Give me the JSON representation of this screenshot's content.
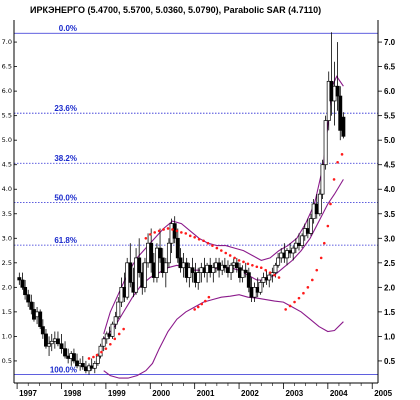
{
  "chart_data": {
    "type": "candlestick",
    "title": "ИРКЭНЕРГО (5.4700, 5.5700, 5.0360, 5.0790), Parabolic SAR (4.7110)",
    "y_ticks": [
      "0.5",
      "1.0",
      "1.5",
      "2.0",
      "2.5",
      "3.0",
      "3.5",
      "4.0",
      "4.5",
      "5.0",
      "5.5",
      "6.0",
      "6.5",
      "7.0"
    ],
    "y_tick_values": [
      0.5,
      1.0,
      1.5,
      2.0,
      2.5,
      3.0,
      3.5,
      4.0,
      4.5,
      5.0,
      5.5,
      6.0,
      6.5,
      7.0
    ],
    "left_ticks": [
      "7.0",
      "6.5",
      "6.0",
      "5.5",
      "5.0",
      "4.5",
      "4.0",
      "3.5",
      "3.0",
      "2.5",
      "2.0",
      "1.5",
      "1.0",
      "0.5"
    ],
    "left_tick_values": [
      7.0,
      6.5,
      6.0,
      5.5,
      5.0,
      4.5,
      4.0,
      3.5,
      3.0,
      2.5,
      2.0,
      1.5,
      1.0,
      0.5
    ],
    "ylim": [
      0.05,
      7.45
    ],
    "x_labels": [
      "1997",
      "1998",
      "1999",
      "2000",
      "2001",
      "2002",
      "2003",
      "2004",
      "2005"
    ],
    "x_label_values": [
      1997,
      1998,
      1999,
      2000,
      2001,
      2002,
      2003,
      2004,
      2005
    ],
    "xlim": [
      1996.93,
      2005.13
    ],
    "fib_levels": [
      {
        "label": "0.0%",
        "value": 7.18
      },
      {
        "label": "23.6%",
        "value": 5.55
      },
      {
        "label": "38.2%",
        "value": 4.53
      },
      {
        "label": "50.0%",
        "value": 3.73
      },
      {
        "label": "61.8%",
        "value": 2.86
      },
      {
        "label": "100.0%",
        "value": 0.22
      }
    ],
    "candles": [
      [
        1997.05,
        2.2,
        2.3,
        2.05,
        2.15
      ],
      [
        1997.12,
        2.15,
        2.3,
        1.95,
        2.0
      ],
      [
        1997.18,
        2.0,
        2.15,
        1.75,
        1.85
      ],
      [
        1997.25,
        1.85,
        1.95,
        1.6,
        1.7
      ],
      [
        1997.32,
        1.7,
        1.85,
        1.45,
        1.55
      ],
      [
        1997.38,
        1.55,
        1.7,
        1.3,
        1.35
      ],
      [
        1997.45,
        1.4,
        1.6,
        1.25,
        1.5
      ],
      [
        1997.52,
        1.5,
        1.55,
        1.15,
        1.2
      ],
      [
        1997.58,
        1.2,
        1.35,
        0.95,
        1.05
      ],
      [
        1997.65,
        1.05,
        1.15,
        0.75,
        0.8
      ],
      [
        1997.72,
        0.8,
        1.0,
        0.6,
        0.85
      ],
      [
        1997.78,
        0.85,
        1.05,
        0.7,
        0.9
      ],
      [
        1997.85,
        0.9,
        1.1,
        0.75,
        0.95
      ],
      [
        1997.92,
        0.95,
        1.1,
        0.8,
        0.85
      ],
      [
        1998.0,
        0.85,
        1.05,
        0.65,
        0.75
      ],
      [
        1998.08,
        0.75,
        0.9,
        0.55,
        0.6
      ],
      [
        1998.15,
        0.6,
        0.75,
        0.45,
        0.55
      ],
      [
        1998.22,
        0.55,
        0.7,
        0.4,
        0.65
      ],
      [
        1998.28,
        0.65,
        0.75,
        0.45,
        0.5
      ],
      [
        1998.35,
        0.5,
        0.65,
        0.35,
        0.4
      ],
      [
        1998.42,
        0.4,
        0.55,
        0.3,
        0.45
      ],
      [
        1998.48,
        0.45,
        0.6,
        0.32,
        0.38
      ],
      [
        1998.55,
        0.38,
        0.5,
        0.25,
        0.3
      ],
      [
        1998.62,
        0.3,
        0.45,
        0.22,
        0.4
      ],
      [
        1998.68,
        0.4,
        0.55,
        0.3,
        0.35
      ],
      [
        1998.75,
        0.35,
        0.5,
        0.25,
        0.45
      ],
      [
        1998.82,
        0.45,
        0.65,
        0.4,
        0.6
      ],
      [
        1998.88,
        0.6,
        0.85,
        0.55,
        0.8
      ],
      [
        1998.95,
        0.8,
        1.0,
        0.7,
        0.95
      ],
      [
        1999.02,
        0.95,
        1.1,
        0.85,
        1.05
      ],
      [
        1999.08,
        1.05,
        1.2,
        0.95,
        1.0
      ],
      [
        1999.15,
        1.0,
        1.3,
        0.95,
        1.25
      ],
      [
        1999.22,
        1.25,
        1.5,
        1.15,
        1.4
      ],
      [
        1999.28,
        1.4,
        1.8,
        1.35,
        1.7
      ],
      [
        1999.35,
        1.7,
        2.2,
        1.6,
        2.0
      ],
      [
        1999.42,
        2.0,
        2.3,
        1.7,
        1.8
      ],
      [
        1999.48,
        1.8,
        2.6,
        1.75,
        2.5
      ],
      [
        1999.55,
        2.5,
        2.9,
        2.0,
        2.1
      ],
      [
        1999.62,
        2.1,
        2.4,
        1.8,
        1.9
      ],
      [
        1999.68,
        1.9,
        2.8,
        1.85,
        2.6
      ],
      [
        1999.75,
        2.6,
        3.0,
        2.2,
        2.3
      ],
      [
        1999.82,
        2.3,
        2.5,
        1.85,
        2.0
      ],
      [
        1999.88,
        2.0,
        2.6,
        1.9,
        2.5
      ],
      [
        1999.95,
        2.5,
        3.1,
        2.4,
        2.9
      ],
      [
        2000.02,
        2.9,
        3.2,
        2.3,
        2.5
      ],
      [
        2000.08,
        2.5,
        2.7,
        2.1,
        2.2
      ],
      [
        2000.15,
        2.2,
        2.9,
        2.1,
        2.8
      ],
      [
        2000.22,
        2.8,
        3.2,
        2.5,
        2.6
      ],
      [
        2000.28,
        2.6,
        2.8,
        2.2,
        2.3
      ],
      [
        2000.35,
        2.3,
        2.6,
        2.0,
        2.5
      ],
      [
        2000.42,
        2.5,
        3.0,
        2.4,
        2.9
      ],
      [
        2000.48,
        2.9,
        3.4,
        2.7,
        3.3
      ],
      [
        2000.55,
        3.3,
        3.45,
        2.9,
        3.0
      ],
      [
        2000.62,
        3.0,
        3.2,
        2.5,
        2.6
      ],
      [
        2000.68,
        2.6,
        2.8,
        2.3,
        2.4
      ],
      [
        2000.75,
        2.4,
        2.7,
        2.2,
        2.5
      ],
      [
        2000.82,
        2.5,
        2.6,
        2.1,
        2.2
      ],
      [
        2000.88,
        2.2,
        2.5,
        2.0,
        2.4
      ],
      [
        2000.95,
        2.4,
        2.6,
        2.1,
        2.3
      ],
      [
        2001.02,
        2.3,
        2.5,
        2.0,
        2.1
      ],
      [
        2001.08,
        2.1,
        2.4,
        1.95,
        2.3
      ],
      [
        2001.15,
        2.3,
        2.5,
        2.1,
        2.4
      ],
      [
        2001.22,
        2.4,
        2.6,
        2.2,
        2.3
      ],
      [
        2001.28,
        2.3,
        2.5,
        2.1,
        2.45
      ],
      [
        2001.35,
        2.45,
        2.6,
        2.2,
        2.3
      ],
      [
        2001.42,
        2.3,
        2.5,
        2.1,
        2.4
      ],
      [
        2001.48,
        2.4,
        2.6,
        2.3,
        2.5
      ],
      [
        2001.55,
        2.5,
        2.6,
        2.2,
        2.35
      ],
      [
        2001.62,
        2.35,
        2.55,
        2.25,
        2.45
      ],
      [
        2001.68,
        2.45,
        2.6,
        2.3,
        2.4
      ],
      [
        2001.75,
        2.4,
        2.55,
        2.2,
        2.3
      ],
      [
        2001.82,
        2.3,
        2.5,
        2.15,
        2.45
      ],
      [
        2001.88,
        2.45,
        2.6,
        2.3,
        2.5
      ],
      [
        2001.95,
        2.5,
        2.6,
        2.3,
        2.4
      ],
      [
        2002.02,
        2.4,
        2.5,
        2.1,
        2.2
      ],
      [
        2002.08,
        2.2,
        2.45,
        2.1,
        2.35
      ],
      [
        2002.15,
        2.35,
        2.5,
        2.2,
        2.3
      ],
      [
        2002.22,
        2.3,
        2.4,
        1.9,
        2.0
      ],
      [
        2002.28,
        2.0,
        2.2,
        1.7,
        1.8
      ],
      [
        2002.35,
        1.8,
        2.1,
        1.7,
        2.0
      ],
      [
        2002.42,
        2.0,
        2.2,
        1.8,
        1.9
      ],
      [
        2002.48,
        1.9,
        2.15,
        1.85,
        2.1
      ],
      [
        2002.55,
        2.1,
        2.3,
        2.0,
        2.2
      ],
      [
        2002.62,
        2.2,
        2.35,
        2.05,
        2.15
      ],
      [
        2002.68,
        2.15,
        2.3,
        2.0,
        2.25
      ],
      [
        2002.75,
        2.25,
        2.4,
        2.1,
        2.3
      ],
      [
        2002.82,
        2.3,
        2.5,
        2.2,
        2.45
      ],
      [
        2002.88,
        2.45,
        2.7,
        2.4,
        2.6
      ],
      [
        2002.95,
        2.6,
        2.8,
        2.5,
        2.7
      ],
      [
        2003.02,
        2.7,
        2.9,
        2.5,
        2.6
      ],
      [
        2003.08,
        2.6,
        2.8,
        2.45,
        2.75
      ],
      [
        2003.15,
        2.75,
        2.9,
        2.6,
        2.7
      ],
      [
        2003.22,
        2.7,
        2.85,
        2.55,
        2.8
      ],
      [
        2003.28,
        2.8,
        3.0,
        2.7,
        2.9
      ],
      [
        2003.35,
        2.9,
        3.1,
        2.75,
        2.85
      ],
      [
        2003.42,
        2.85,
        3.1,
        2.8,
        3.05
      ],
      [
        2003.48,
        3.05,
        3.3,
        2.95,
        3.2
      ],
      [
        2003.55,
        3.2,
        3.4,
        3.0,
        3.1
      ],
      [
        2003.62,
        3.1,
        3.5,
        3.05,
        3.4
      ],
      [
        2003.68,
        3.4,
        3.8,
        3.3,
        3.7
      ],
      [
        2003.75,
        3.7,
        3.9,
        3.4,
        3.5
      ],
      [
        2003.82,
        3.5,
        4.0,
        3.45,
        3.9
      ],
      [
        2003.88,
        3.9,
        4.6,
        3.8,
        4.5
      ],
      [
        2003.95,
        4.5,
        5.5,
        4.4,
        5.4
      ],
      [
        2004.02,
        5.4,
        6.4,
        5.2,
        6.2
      ],
      [
        2004.08,
        6.2,
        7.2,
        5.5,
        5.8
      ],
      [
        2004.15,
        5.8,
        6.6,
        5.3,
        6.1
      ],
      [
        2004.22,
        6.1,
        7.0,
        5.6,
        5.9
      ],
      [
        2004.28,
        5.9,
        6.1,
        5.0,
        5.2
      ],
      [
        2004.35,
        5.47,
        5.57,
        5.036,
        5.079
      ]
    ],
    "upper_band": [
      [
        1998.95,
        1.05
      ],
      [
        1999.1,
        1.5
      ],
      [
        1999.3,
        1.9
      ],
      [
        1999.5,
        2.3
      ],
      [
        1999.7,
        2.6
      ],
      [
        1999.9,
        2.8
      ],
      [
        2000.1,
        3.0
      ],
      [
        2000.3,
        3.2
      ],
      [
        2000.5,
        3.35
      ],
      [
        2000.7,
        3.3
      ],
      [
        2000.9,
        3.15
      ],
      [
        2001.1,
        3.0
      ],
      [
        2001.3,
        2.9
      ],
      [
        2001.5,
        2.85
      ],
      [
        2001.7,
        2.85
      ],
      [
        2001.9,
        2.8
      ],
      [
        2002.1,
        2.75
      ],
      [
        2002.3,
        2.65
      ],
      [
        2002.5,
        2.55
      ],
      [
        2002.7,
        2.6
      ],
      [
        2002.9,
        2.75
      ],
      [
        2003.1,
        2.85
      ],
      [
        2003.3,
        3.0
      ],
      [
        2003.5,
        3.3
      ],
      [
        2003.7,
        3.7
      ],
      [
        2003.9,
        4.5
      ],
      [
        2004.0,
        5.3
      ],
      [
        2004.1,
        6.1
      ],
      [
        2004.2,
        6.3
      ],
      [
        2004.35,
        6.1
      ]
    ],
    "middle_band": [
      [
        1998.95,
        0.95
      ],
      [
        1999.2,
        1.2
      ],
      [
        1999.4,
        1.5
      ],
      [
        1999.6,
        1.8
      ],
      [
        1999.8,
        2.05
      ],
      [
        2000.0,
        2.2
      ],
      [
        2000.2,
        2.3
      ],
      [
        2000.4,
        2.4
      ],
      [
        2000.6,
        2.45
      ],
      [
        2000.8,
        2.4
      ],
      [
        2001.0,
        2.35
      ],
      [
        2001.2,
        2.35
      ],
      [
        2001.4,
        2.38
      ],
      [
        2001.6,
        2.4
      ],
      [
        2001.8,
        2.4
      ],
      [
        2002.0,
        2.35
      ],
      [
        2002.2,
        2.25
      ],
      [
        2002.4,
        2.15
      ],
      [
        2002.6,
        2.15
      ],
      [
        2002.8,
        2.25
      ],
      [
        2003.0,
        2.4
      ],
      [
        2003.2,
        2.55
      ],
      [
        2003.4,
        2.75
      ],
      [
        2003.6,
        3.0
      ],
      [
        2003.8,
        3.35
      ],
      [
        2004.0,
        3.7
      ],
      [
        2004.15,
        3.9
      ],
      [
        2004.35,
        4.2
      ]
    ],
    "lower_band": [
      [
        1998.95,
        0.3
      ],
      [
        1999.1,
        0.2
      ],
      [
        1999.3,
        0.15
      ],
      [
        1999.5,
        0.15
      ],
      [
        1999.7,
        0.2
      ],
      [
        1999.9,
        0.3
      ],
      [
        2000.05,
        0.45
      ],
      [
        2000.2,
        0.75
      ],
      [
        2000.4,
        1.1
      ],
      [
        2000.6,
        1.35
      ],
      [
        2000.8,
        1.5
      ],
      [
        2001.0,
        1.6
      ],
      [
        2001.2,
        1.7
      ],
      [
        2001.4,
        1.75
      ],
      [
        2001.6,
        1.8
      ],
      [
        2001.8,
        1.82
      ],
      [
        2002.0,
        1.85
      ],
      [
        2002.2,
        1.8
      ],
      [
        2002.4,
        1.78
      ],
      [
        2002.6,
        1.75
      ],
      [
        2002.8,
        1.72
      ],
      [
        2003.0,
        1.7
      ],
      [
        2003.2,
        1.6
      ],
      [
        2003.4,
        1.5
      ],
      [
        2003.6,
        1.35
      ],
      [
        2003.8,
        1.2
      ],
      [
        2004.0,
        1.1
      ],
      [
        2004.15,
        1.12
      ],
      [
        2004.35,
        1.3
      ]
    ],
    "sar_points": [
      [
        1998.62,
        0.55
      ],
      [
        1998.72,
        0.58
      ],
      [
        1998.8,
        0.62
      ],
      [
        1998.9,
        0.68
      ],
      [
        1999.0,
        0.75
      ],
      [
        1999.1,
        0.84
      ],
      [
        1999.2,
        0.95
      ],
      [
        1999.3,
        1.05
      ],
      [
        1999.4,
        1.15
      ],
      [
        1999.9,
        3.0
      ],
      [
        2000.0,
        3.08
      ],
      [
        2000.1,
        3.12
      ],
      [
        2000.2,
        3.15
      ],
      [
        2000.3,
        3.18
      ],
      [
        2000.4,
        3.2
      ],
      [
        2000.5,
        3.18
      ],
      [
        2000.6,
        3.15
      ],
      [
        2000.7,
        3.12
      ],
      [
        2000.8,
        3.1
      ],
      [
        2000.9,
        3.05
      ],
      [
        2001.0,
        3.02
      ],
      [
        2001.1,
        2.98
      ],
      [
        2001.2,
        2.95
      ],
      [
        2001.3,
        2.9
      ],
      [
        2001.4,
        2.85
      ],
      [
        2001.5,
        2.8
      ],
      [
        2001.6,
        2.75
      ],
      [
        2001.7,
        2.7
      ],
      [
        2001.8,
        2.65
      ],
      [
        2001.9,
        2.6
      ],
      [
        2002.0,
        2.55
      ],
      [
        2002.1,
        2.52
      ],
      [
        2002.2,
        2.48
      ],
      [
        2002.3,
        2.45
      ],
      [
        2002.4,
        2.42
      ],
      [
        2002.5,
        2.4
      ],
      [
        2002.6,
        2.35
      ],
      [
        2002.7,
        2.3
      ],
      [
        2002.8,
        2.25
      ],
      [
        2002.9,
        2.2
      ],
      [
        2001.0,
        1.55
      ],
      [
        2001.08,
        1.6
      ],
      [
        2001.16,
        1.66
      ],
      [
        2001.24,
        1.72
      ],
      [
        2001.32,
        1.8
      ],
      [
        2003.05,
        1.55
      ],
      [
        2003.15,
        1.62
      ],
      [
        2003.25,
        1.7
      ],
      [
        2003.35,
        1.78
      ],
      [
        2003.45,
        1.88
      ],
      [
        2003.55,
        2.0
      ],
      [
        2003.65,
        2.15
      ],
      [
        2003.75,
        2.35
      ],
      [
        2003.85,
        2.6
      ],
      [
        2003.92,
        2.9
      ],
      [
        2004.0,
        3.25
      ],
      [
        2004.06,
        3.7
      ],
      [
        2004.14,
        4.2
      ],
      [
        2004.22,
        4.55
      ],
      [
        2004.32,
        4.711
      ]
    ],
    "colors": {
      "background": "#ffffff",
      "candle": "#000000",
      "bands": "#8b1a8b",
      "sar": "#ff1a1a",
      "fib_line": "#2a2ad4",
      "fib_text": "#1a2acc",
      "axis": "#000000"
    }
  }
}
